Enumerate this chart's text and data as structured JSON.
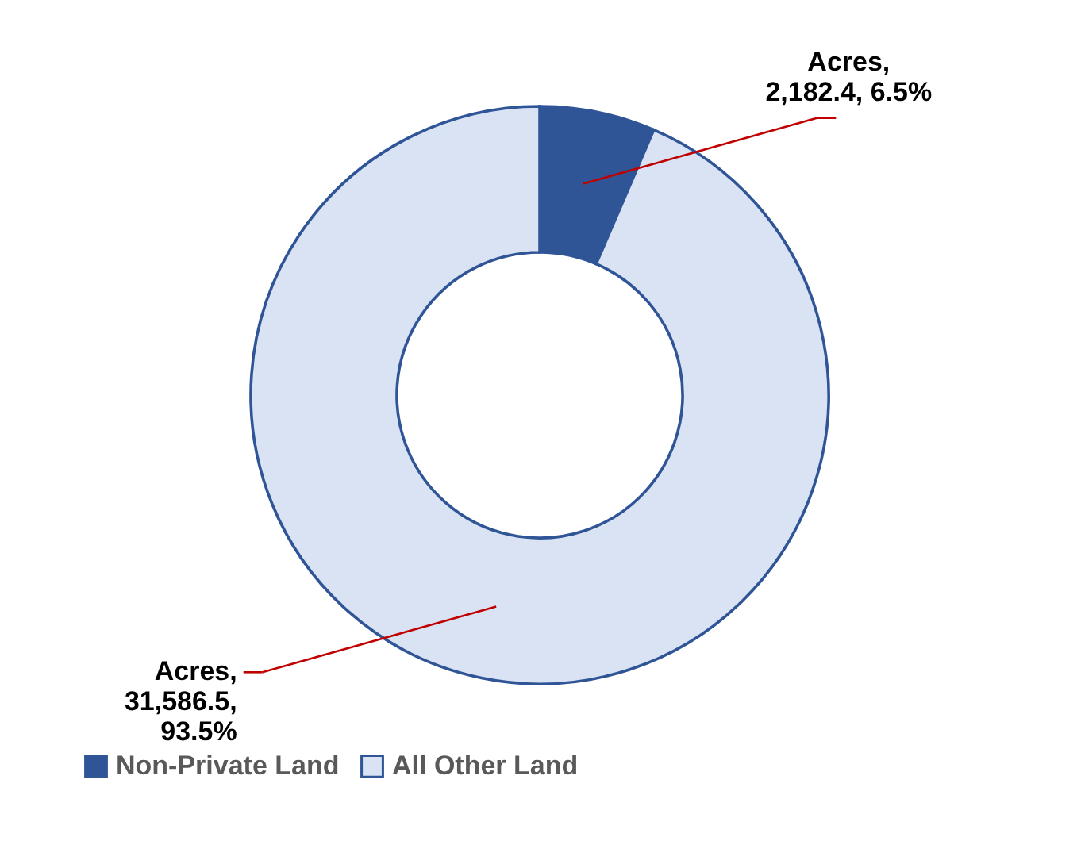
{
  "chart_data": {
    "type": "donut",
    "categories": [
      "Non-Private Land",
      "All Other Land"
    ],
    "values": [
      2182.4,
      31586.5
    ],
    "colors": [
      "#2f5597",
      "#dae3f3"
    ],
    "value_labels": [
      "Acres,\n2,182.4, 6.5%",
      "Acres,\n31,586.5,\n93.5%"
    ],
    "legend": "bottom"
  }
}
